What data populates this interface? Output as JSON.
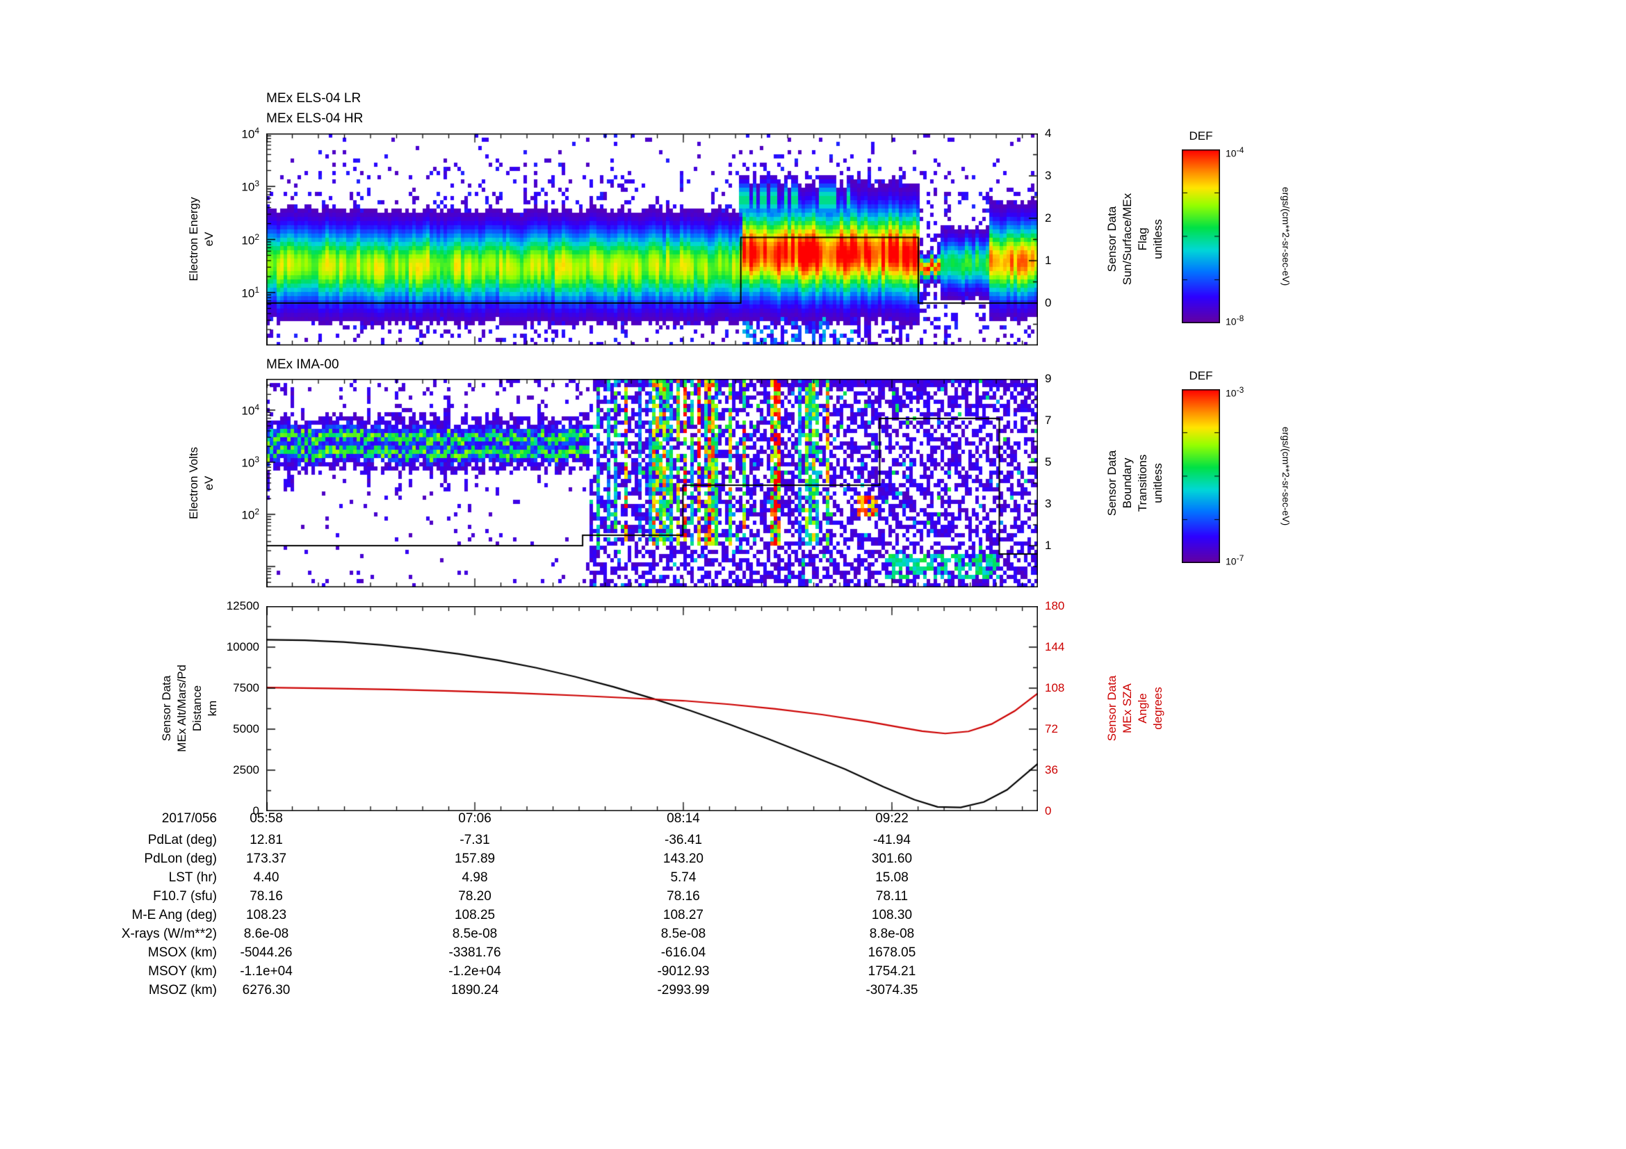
{
  "meta": {
    "background": "#ffffff",
    "frame_color": "#000000",
    "accent_red": "#cc0000"
  },
  "panel_els": {
    "titles": [
      "MEx ELS-04 LR",
      "MEx ELS-04 HR"
    ],
    "ylabel_lines": [
      "Electron Energy",
      "eV"
    ],
    "right_label_lines": [
      "Sensor Data",
      "Sun/Surface/MEx",
      "Flag",
      "unitless"
    ]
  },
  "panel_ima": {
    "title": "MEx IMA-00",
    "ylabel_lines": [
      "Electron Volts",
      "eV"
    ],
    "right_label_lines": [
      "Sensor Data",
      "Boundary",
      "Transitions",
      "unitless"
    ]
  },
  "panel_lines": {
    "ylabel_lines": [
      "Sensor Data",
      "MEx Alt/Mars/Pd",
      "Distance",
      "km"
    ],
    "right_label_lines": [
      "Sensor Data",
      "MEx SZA",
      "Angle",
      "degrees"
    ]
  },
  "colorbars": [
    {
      "title": "DEF",
      "unit": "ergs/(cm**2-sr-sec-eV)"
    },
    {
      "title": "DEF",
      "unit": "ergs/(cm**2-sr-sec-eV)"
    }
  ],
  "chart_data": [
    {
      "type": "heatmap",
      "title": "MEx ELS-04 LR / MEx ELS-04 HR",
      "ylabel": "Electron Energy (eV)",
      "yscale": "log",
      "ylog_top": 4,
      "ylog_bottom": 0,
      "yticks_exp": [
        4,
        3,
        2,
        1
      ],
      "colorbar": {
        "label": "DEF",
        "units": "ergs/(cm**2-sr-sec-eV)",
        "log_top": -4,
        "log_bottom": -8
      },
      "right_axis": {
        "label": "Sensor Data Sun/Surface/MEx Flag (unitless)",
        "top": 4,
        "bottom": -1,
        "ticks": [
          4,
          3,
          2,
          1,
          0
        ]
      },
      "flag_series": {
        "x": [
          0,
          0.615,
          0.615,
          0.845,
          0.845,
          1
        ],
        "y": [
          0,
          0,
          1.55,
          1.55,
          0,
          0
        ]
      },
      "band_segments": [
        {
          "x0": 0.0,
          "x1": 0.615,
          "center": 1.5,
          "hw": 0.45,
          "peak": 0.7
        },
        {
          "x0": 0.615,
          "x1": 0.845,
          "center": 1.75,
          "hw": 0.52,
          "peak": 0.98
        },
        {
          "x0": 0.845,
          "x1": 0.875,
          "center": 1.5,
          "hw": 0.13,
          "peak": 0.92
        },
        {
          "x0": 0.875,
          "x1": 0.935,
          "center": 1.55,
          "hw": 0.3,
          "peak": 0.55
        },
        {
          "x0": 0.935,
          "x1": 1.0,
          "center": 1.6,
          "hw": 0.45,
          "peak": 0.9
        }
      ],
      "description": "Electron energy-time spectrogram: persistent 10-300 eV plasma band (green/yellow), intense red flux enhancement ~08:35-09:05, brief dropout, renewed enhancement at right edge; sparse noise counts at higher energies; Sun/Surface/MEx flag line steps from 0 to ~1.5 during the enhancement."
    },
    {
      "type": "heatmap",
      "title": "MEx IMA-00",
      "ylabel": "Electron Volts (eV)",
      "yscale": "log",
      "ylog_top": 4.6,
      "ylog_bottom": 0.6,
      "yticks_exp": [
        4,
        3,
        2
      ],
      "colorbar": {
        "label": "DEF",
        "units": "ergs/(cm**2-sr-sec-eV)",
        "log_top": -3,
        "log_bottom": -7
      },
      "right_axis": {
        "label": "Sensor Data Boundary Transitions (unitless)",
        "top": 9,
        "bottom": -1,
        "ticks": [
          9,
          7,
          5,
          3,
          1
        ]
      },
      "boundary_series": {
        "x": [
          0,
          0.41,
          0.41,
          0.54,
          0.54,
          0.795,
          0.795,
          0.95,
          0.95,
          1
        ],
        "y": [
          1,
          1,
          1.5,
          1.5,
          3.9,
          3.9,
          7.1,
          7.1,
          0.6,
          0.6
        ]
      },
      "left_region": {
        "x1": 0.42,
        "dot_density": 0.03,
        "band": {
          "center": 3.35,
          "hw": 0.34,
          "core1": 3.48,
          "core2": 3.18
        }
      },
      "right_region": {
        "density": 0.5,
        "sparkle": 0.05,
        "streaks": {
          "x0": 0.43,
          "x1": 0.73,
          "prob": 0.5
        }
      },
      "features": [
        {
          "x0": 0.765,
          "x1": 0.795,
          "y0": 1.95,
          "y1": 2.35,
          "intensity": 0.9,
          "prob": 0.8
        },
        {
          "x0": 0.8,
          "x1": 0.95,
          "y0": 0.75,
          "y1": 1.25,
          "intensity": 0.5,
          "prob": 0.55
        }
      ],
      "description": "Ion spectrogram: narrow banded 1-6 keV flux before ~07:40 on white background, then dense broadband purple noise with vertical cyan/green flux streaks; orange hot spot near 09:15 at ~150 eV and cyan patch at low energies; boundary-transition step function overlaid (1 -> 4 -> 7 -> drop)."
    },
    {
      "type": "line",
      "x_ticks": {
        "fractions": [
          0,
          0.2703,
          0.5405,
          0.8108
        ],
        "labels": [
          "05:58",
          "07:06",
          "08:14",
          "09:22"
        ]
      },
      "left_axis": {
        "label": "Sensor Data MEx Alt/Mars/Pd Distance (km)",
        "range": [
          0,
          12500
        ],
        "ticks": [
          12500,
          10000,
          7500,
          5000,
          2500,
          0
        ],
        "color": "#000000"
      },
      "right_axis": {
        "label": "Sensor Data MEx SZA Angle (degrees)",
        "range": [
          0,
          180
        ],
        "ticks": [
          180,
          144,
          108,
          72,
          36,
          0
        ],
        "color": "#cc0000"
      },
      "series": [
        {
          "name": "MEx Alt/Mars/Pd Distance",
          "color": "#000000",
          "axis": "left",
          "x": [
            0,
            0.05,
            0.1,
            0.15,
            0.2,
            0.25,
            0.3,
            0.35,
            0.4,
            0.45,
            0.5,
            0.55,
            0.6,
            0.65,
            0.7,
            0.75,
            0.8,
            0.84,
            0.87,
            0.9,
            0.93,
            0.96,
            1
          ],
          "y": [
            10450,
            10420,
            10310,
            10130,
            9890,
            9580,
            9200,
            8740,
            8200,
            7580,
            6880,
            6120,
            5300,
            4420,
            3500,
            2560,
            1480,
            700,
            260,
            230,
            560,
            1300,
            2900
          ]
        },
        {
          "name": "MEx SZA Angle",
          "color": "#cc0000",
          "axis": "right",
          "x": [
            0,
            0.08,
            0.16,
            0.24,
            0.32,
            0.4,
            0.48,
            0.54,
            0.6,
            0.66,
            0.72,
            0.78,
            0.82,
            0.85,
            0.88,
            0.91,
            0.94,
            0.97,
            1
          ],
          "y": [
            108.5,
            107.8,
            106.8,
            105.5,
            103.8,
            101.6,
            99,
            97,
            93.8,
            89.8,
            84.8,
            78.6,
            73.8,
            70.3,
            68.2,
            70,
            76.5,
            88,
            103.5
          ]
        }
      ]
    },
    {
      "type": "table",
      "date_label": "2017/056",
      "time_ticks": [
        "05:58",
        "07:06",
        "08:14",
        "09:22"
      ],
      "rows": [
        {
          "label": "PdLat (deg)",
          "values": [
            "12.81",
            "-7.31",
            "-36.41",
            "-41.94"
          ]
        },
        {
          "label": "PdLon (deg)",
          "values": [
            "173.37",
            "157.89",
            "143.20",
            "301.60"
          ]
        },
        {
          "label": "LST (hr)",
          "values": [
            "4.40",
            "4.98",
            "5.74",
            "15.08"
          ]
        },
        {
          "label": "F10.7 (sfu)",
          "values": [
            "78.16",
            "78.20",
            "78.16",
            "78.11"
          ]
        },
        {
          "label": "M-E Ang (deg)",
          "values": [
            "108.23",
            "108.25",
            "108.27",
            "108.30"
          ]
        },
        {
          "label": "X-rays (W/m**2)",
          "values": [
            "8.6e-08",
            "8.5e-08",
            "8.5e-08",
            "8.8e-08"
          ]
        },
        {
          "label": "MSOX (km)",
          "values": [
            "-5044.26",
            "-3381.76",
            "-616.04",
            "1678.05"
          ]
        },
        {
          "label": "MSOY (km)",
          "values": [
            "-1.1e+04",
            "-1.2e+04",
            "-9012.93",
            "1754.21"
          ]
        },
        {
          "label": "MSOZ (km)",
          "values": [
            "6276.30",
            "1890.24",
            "-2993.99",
            "-3074.35"
          ]
        }
      ]
    }
  ]
}
